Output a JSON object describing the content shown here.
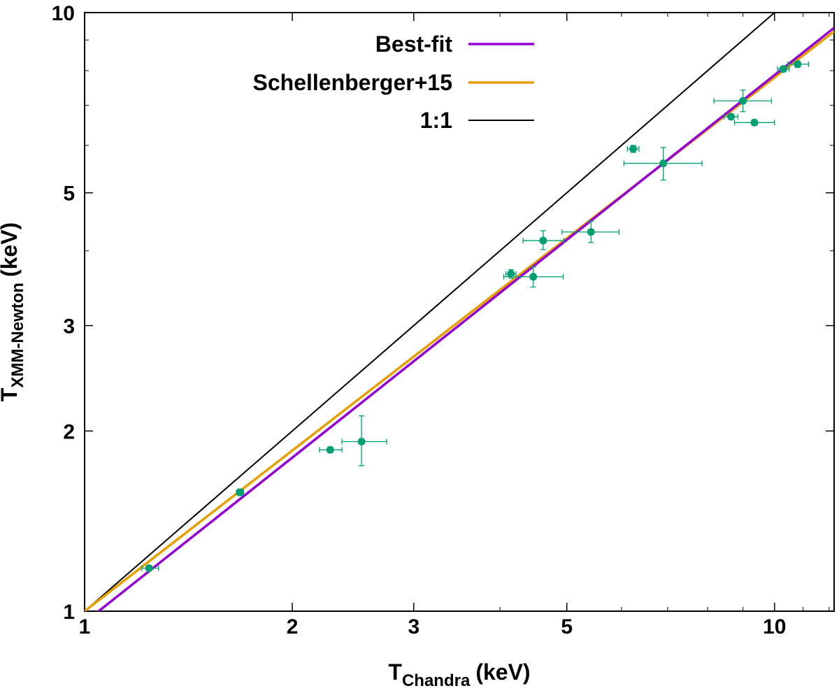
{
  "chart_data": {
    "type": "scatter",
    "xscale": "log",
    "yscale": "log",
    "xlim": [
      1,
      12.2
    ],
    "ylim": [
      1,
      10
    ],
    "xlabel": {
      "main": "T",
      "sub": "Chandra",
      "unit": "(keV)"
    },
    "ylabel": {
      "main": "T",
      "sub": "XMM-Newton",
      "unit": "(keV)"
    },
    "xticks": [
      1,
      2,
      3,
      5,
      10
    ],
    "xtick_labels": [
      "1",
      "2",
      "3",
      "5",
      "10"
    ],
    "yticks": [
      1,
      2,
      3,
      5,
      10
    ],
    "ytick_labels": [
      "1",
      "2",
      "3",
      "5",
      "10"
    ],
    "grid": false,
    "legend_position": "top-center",
    "lines": [
      {
        "name": "Best-fit",
        "color": "#9400d3",
        "x": [
          1,
          12.2
        ],
        "y": [
          0.958,
          9.43
        ]
      },
      {
        "name": "Schellenberger+15",
        "color": "#e69f00",
        "x": [
          1,
          12.2
        ],
        "y": [
          1.0,
          9.3
        ]
      },
      {
        "name": "1:1",
        "color": "#000000",
        "x": [
          1,
          10
        ],
        "y": [
          1,
          10
        ]
      }
    ],
    "points": {
      "color": "#009e73",
      "data": [
        {
          "x": 1.24,
          "y": 1.18,
          "xerr": [
            1.21,
            1.28
          ],
          "yerr": [
            1.17,
            1.19
          ]
        },
        {
          "x": 1.68,
          "y": 1.58,
          "xerr": [
            1.66,
            1.7
          ],
          "yerr": [
            1.56,
            1.6
          ]
        },
        {
          "x": 2.27,
          "y": 1.86,
          "xerr": [
            2.19,
            2.36
          ],
          "yerr": [
            1.84,
            1.88
          ]
        },
        {
          "x": 2.52,
          "y": 1.92,
          "xerr": [
            2.36,
            2.74
          ],
          "yerr": [
            1.75,
            2.12
          ]
        },
        {
          "x": 4.15,
          "y": 3.66,
          "xerr": [
            4.08,
            4.22
          ],
          "yerr": [
            3.6,
            3.72
          ]
        },
        {
          "x": 4.47,
          "y": 3.62,
          "xerr": [
            4.05,
            4.94
          ],
          "yerr": [
            3.48,
            3.76
          ]
        },
        {
          "x": 4.62,
          "y": 4.16,
          "xerr": [
            4.32,
            4.95
          ],
          "yerr": [
            4.02,
            4.32
          ]
        },
        {
          "x": 5.42,
          "y": 4.3,
          "xerr": [
            4.92,
            5.95
          ],
          "yerr": [
            4.13,
            4.48
          ]
        },
        {
          "x": 6.24,
          "y": 5.92,
          "xerr": [
            6.12,
            6.36
          ],
          "yerr": [
            5.84,
            6.0
          ]
        },
        {
          "x": 6.9,
          "y": 5.6,
          "xerr": [
            6.05,
            7.85
          ],
          "yerr": [
            5.25,
            5.95
          ]
        },
        {
          "x": 8.65,
          "y": 6.7,
          "xerr": [
            8.45,
            8.85
          ],
          "yerr": [
            6.63,
            6.77
          ]
        },
        {
          "x": 9.0,
          "y": 7.12,
          "xerr": [
            8.17,
            9.9
          ],
          "yerr": [
            6.83,
            7.42
          ]
        },
        {
          "x": 9.35,
          "y": 6.55,
          "xerr": [
            8.75,
            10.0
          ],
          "yerr": [
            6.48,
            6.62
          ]
        },
        {
          "x": 10.3,
          "y": 8.05,
          "xerr": [
            10.1,
            10.5
          ],
          "yerr": [
            7.96,
            8.14
          ]
        },
        {
          "x": 10.8,
          "y": 8.2,
          "xerr": [
            10.45,
            11.2
          ],
          "yerr": [
            8.1,
            8.3
          ]
        }
      ]
    }
  }
}
